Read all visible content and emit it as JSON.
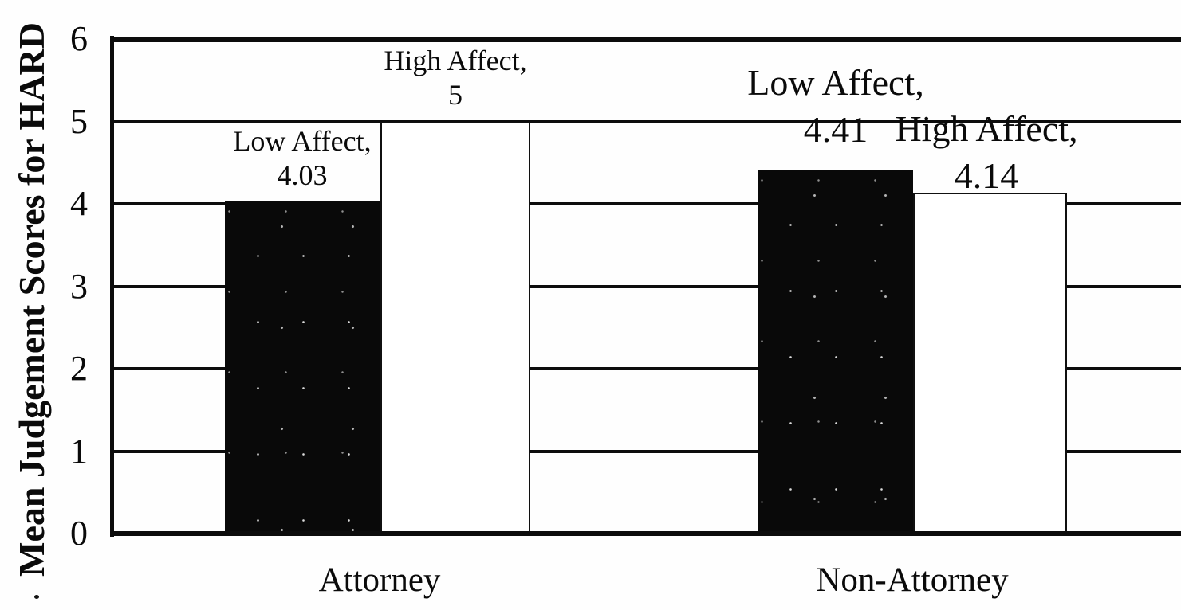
{
  "chart_data": {
    "type": "bar",
    "title": "",
    "ylabel": "Mean Judgement Scores for HARD",
    "xlabel": "",
    "categories": [
      "Attorney",
      "Non-Attorney"
    ],
    "series": [
      {
        "name": "Low Affect",
        "fill": "#0a0a0a",
        "values": [
          4.03,
          4.41
        ]
      },
      {
        "name": "High Affect",
        "fill": "#ffffff",
        "values": [
          5,
          4.14
        ]
      }
    ],
    "ylim": [
      0,
      6
    ],
    "yticks": [
      0,
      1,
      2,
      3,
      4,
      5,
      6
    ],
    "ytick_labels": [
      "0",
      "1",
      "2",
      "3",
      "4",
      "5",
      "6"
    ],
    "grid": true,
    "legend": "none",
    "data_labels": [
      {
        "category": "Attorney",
        "series": "Low Affect",
        "line1": "Low Affect,",
        "line2": "4.03"
      },
      {
        "category": "Attorney",
        "series": "High Affect",
        "line1": "High Affect,",
        "line2": "5"
      },
      {
        "category": "Non-Attorney",
        "series": "Low Affect",
        "line1": "Low Affect,",
        "line2": "4.41"
      },
      {
        "category": "Non-Attorney",
        "series": "High Affect",
        "line1": "High Affect,",
        "line2": "4.14"
      }
    ],
    "style": {
      "ink_color": "#0a0a0a",
      "background_color": "#ffffff",
      "bar_fills": [
        "black",
        "white-outlined"
      ]
    }
  }
}
